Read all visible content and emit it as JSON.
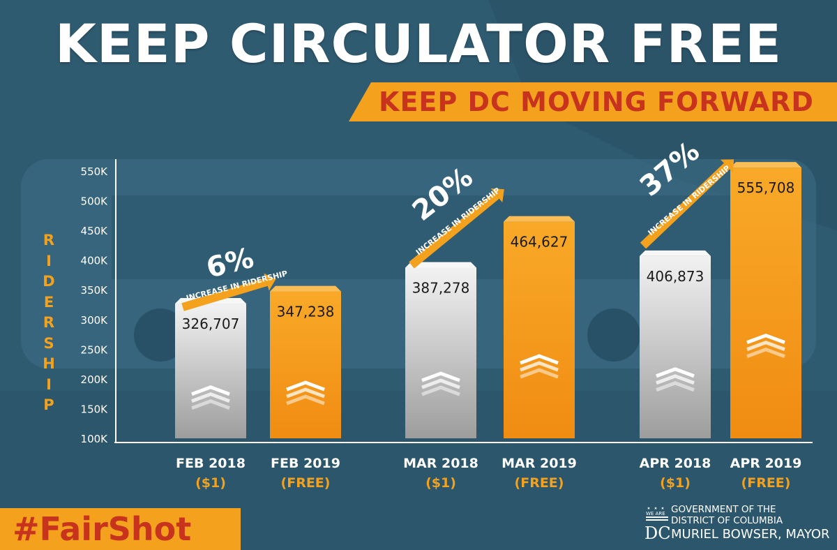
{
  "header": {
    "title": "KEEP CIRCULATOR FREE",
    "subtitle": "KEEP DC MOVING FORWARD"
  },
  "colors": {
    "background": "#2f5c73",
    "accent_orange": "#f4a11d",
    "accent_red": "#c8331e",
    "bar_gray": "#d9d9d9",
    "text_white": "#ffffff"
  },
  "chart_data": {
    "type": "bar",
    "ylabel": "RIDERSHIP",
    "ylim": [
      100000,
      550000
    ],
    "yticks": [
      100000,
      150000,
      200000,
      250000,
      300000,
      350000,
      400000,
      450000,
      500000,
      550000
    ],
    "ytick_labels": [
      "100K",
      "150K",
      "200K",
      "250K",
      "300K",
      "350K",
      "400K",
      "450K",
      "500K",
      "550K"
    ],
    "grid": false,
    "categories": [
      {
        "month": "FEB 2018",
        "price": "($1)"
      },
      {
        "month": "FEB 2019",
        "price": "(FREE)"
      },
      {
        "month": "MAR 2018",
        "price": "($1)"
      },
      {
        "month": "MAR 2019",
        "price": "(FREE)"
      },
      {
        "month": "APR 2018",
        "price": "($1)"
      },
      {
        "month": "APR 2019",
        "price": "(FREE)"
      }
    ],
    "values": [
      326707,
      347238,
      387278,
      464627,
      406873,
      555708
    ],
    "value_labels": [
      "326,707",
      "347,238",
      "387,278",
      "464,627",
      "406,873",
      "555,708"
    ],
    "annotations": [
      {
        "percent": "6%",
        "text": "INCREASE IN RIDERSHIP"
      },
      {
        "percent": "20%",
        "text": "INCREASE IN RIDERSHIP"
      },
      {
        "percent": "37%",
        "text": "INCREASE IN RIDERSHIP"
      }
    ]
  },
  "footer": {
    "hashtag": "#FairShot",
    "gov_line1": "GOVERNMENT OF THE",
    "gov_line2": "DISTRICT OF COLUMBIA",
    "gov_line3": "MURIEL BOWSER, MAYOR",
    "logo_small": "WE ARE",
    "logo_big": "DC"
  }
}
